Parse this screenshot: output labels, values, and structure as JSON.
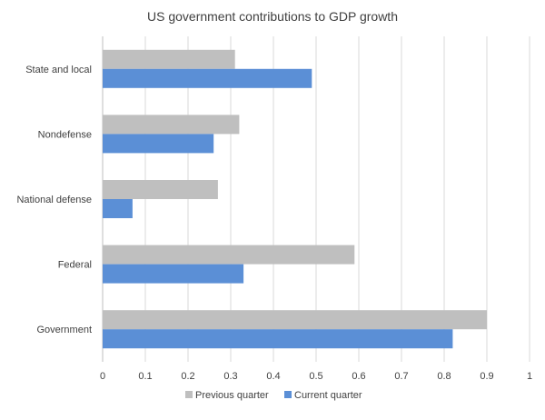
{
  "chart_data": {
    "type": "bar",
    "orientation": "horizontal",
    "title": "US government contributions to GDP growth",
    "categories": [
      "State and local",
      "Nondefense",
      "National defense",
      "Federal",
      "Government"
    ],
    "series": [
      {
        "name": "Previous quarter",
        "color": "#bfbfbf",
        "values": [
          0.31,
          0.32,
          0.27,
          0.59,
          0.9
        ]
      },
      {
        "name": "Current quarter",
        "color": "#5b8fd6",
        "values": [
          0.49,
          0.26,
          0.07,
          0.33,
          0.82
        ]
      }
    ],
    "xlim": [
      0,
      1
    ],
    "xticks": [
      "0",
      "0.1",
      "0.2",
      "0.3",
      "0.4",
      "0.5",
      "0.6",
      "0.7",
      "0.8",
      "0.9",
      "1"
    ],
    "grid": true,
    "legend_position": "bottom"
  }
}
